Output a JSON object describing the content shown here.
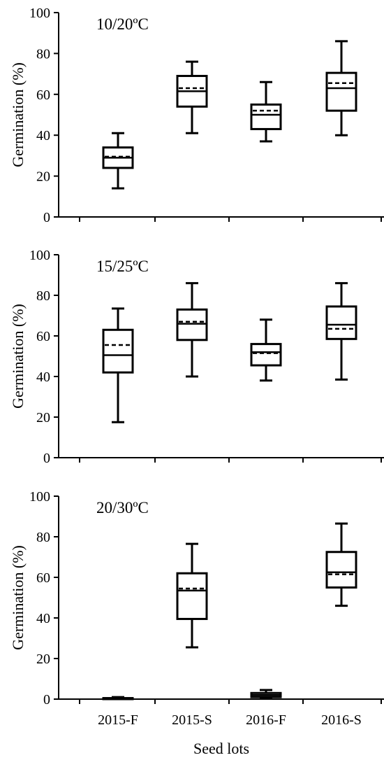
{
  "chart_data": [
    {
      "type": "box",
      "title": "10/20ºC",
      "xlabel": "",
      "ylabel": "Germination (%)",
      "ylim": [
        0,
        100
      ],
      "yticks": [
        0,
        20,
        40,
        60,
        80,
        100
      ],
      "categories": [
        "2015-F",
        "2015-S",
        "2016-F",
        "2016-S"
      ],
      "boxes": [
        {
          "min": 14,
          "q1": 24,
          "median": 29,
          "mean": 29.5,
          "q3": 34,
          "max": 41
        },
        {
          "min": 41,
          "q1": 54,
          "median": 61.5,
          "mean": 63,
          "q3": 69,
          "max": 76
        },
        {
          "min": 37,
          "q1": 43,
          "median": 50,
          "mean": 52,
          "q3": 55,
          "max": 66
        },
        {
          "min": 40,
          "q1": 52,
          "median": 63,
          "mean": 65.5,
          "q3": 70.5,
          "max": 86
        }
      ]
    },
    {
      "type": "box",
      "title": "15/25ºC",
      "xlabel": "",
      "ylabel": "Germination (%)",
      "ylim": [
        0,
        100
      ],
      "yticks": [
        0,
        20,
        40,
        60,
        80,
        100
      ],
      "categories": [
        "2015-F",
        "2015-S",
        "2016-F",
        "2016-S"
      ],
      "boxes": [
        {
          "min": 17.5,
          "q1": 42,
          "median": 50.5,
          "mean": 55.5,
          "q3": 63,
          "max": 73.5
        },
        {
          "min": 40,
          "q1": 58,
          "median": 66,
          "mean": 67,
          "q3": 73,
          "max": 86
        },
        {
          "min": 38,
          "q1": 45.5,
          "median": 52,
          "mean": 51.5,
          "q3": 56,
          "max": 68
        },
        {
          "min": 38.5,
          "q1": 58.5,
          "median": 65.5,
          "mean": 63.5,
          "q3": 74.5,
          "max": 86
        }
      ]
    },
    {
      "type": "box",
      "title": "20/30ºC",
      "xlabel": "Seed lots",
      "ylabel": "Germination (%)",
      "ylim": [
        0,
        100
      ],
      "yticks": [
        0,
        20,
        40,
        60,
        80,
        100
      ],
      "categories": [
        "2015-F",
        "2015-S",
        "2016-F",
        "2016-S"
      ],
      "boxes": [
        {
          "min": 0,
          "q1": 0,
          "median": 0.3,
          "mean": 0.3,
          "q3": 0.5,
          "max": 1
        },
        {
          "min": 25.5,
          "q1": 39.5,
          "median": 53.5,
          "mean": 54.5,
          "q3": 62,
          "max": 76.5
        },
        {
          "min": 0.5,
          "q1": 1,
          "median": 2,
          "mean": 2,
          "q3": 3,
          "max": 4.5
        },
        {
          "min": 46,
          "q1": 55,
          "median": 62.5,
          "mean": 61.5,
          "q3": 72.5,
          "max": 86.5
        }
      ]
    }
  ]
}
